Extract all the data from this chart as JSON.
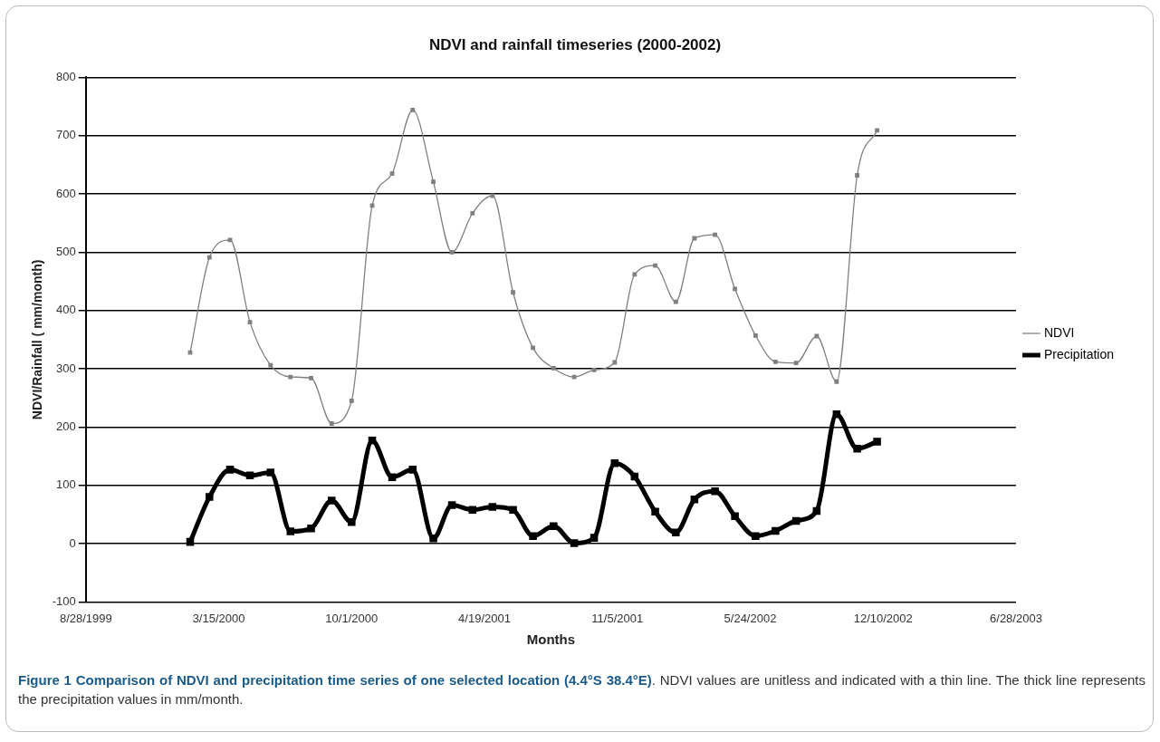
{
  "chart_data": {
    "type": "line",
    "title": "NDVI and rainfall timeseries (2000-2002)",
    "xlabel": "Months",
    "ylabel": "NDVI/Rainfall ( mm/month)",
    "x": [
      "2000-02-01",
      "2000-03-01",
      "2000-04-01",
      "2000-05-01",
      "2000-06-01",
      "2000-07-01",
      "2000-08-01",
      "2000-09-01",
      "2000-10-01",
      "2000-11-01",
      "2000-12-01",
      "2001-01-01",
      "2001-02-01",
      "2001-03-01",
      "2001-04-01",
      "2001-05-01",
      "2001-06-01",
      "2001-07-01",
      "2001-08-01",
      "2001-09-01",
      "2001-10-01",
      "2001-11-01",
      "2001-12-01",
      "2002-01-01",
      "2002-02-01",
      "2002-03-01",
      "2002-04-01",
      "2002-05-01",
      "2002-06-01",
      "2002-07-01",
      "2002-08-01",
      "2002-09-01",
      "2002-10-01",
      "2002-11-01",
      "2002-12-01"
    ],
    "series": [
      {
        "name": "NDVI",
        "color": "#808080",
        "values": [
          328,
          491,
          521,
          380,
          306,
          286,
          284,
          206,
          245,
          580,
          635,
          744,
          621,
          500,
          567,
          597,
          431,
          336,
          301,
          286,
          298,
          311,
          462,
          477,
          415,
          524,
          530,
          437,
          357,
          312,
          310,
          356,
          278,
          632,
          709
        ]
      },
      {
        "name": "Precipitation",
        "color": "#000000",
        "values": [
          3,
          80,
          127,
          117,
          122,
          21,
          26,
          74,
          37,
          177,
          114,
          127,
          9,
          66,
          58,
          63,
          58,
          13,
          30,
          1,
          10,
          138,
          115,
          55,
          19,
          76,
          90,
          47,
          13,
          22,
          39,
          56,
          222,
          163,
          175
        ]
      }
    ],
    "xlim": [
      "1999-08-28",
      "2003-06-28"
    ],
    "xticks": [
      {
        "value": "1999-08-28",
        "label": "8/28/1999"
      },
      {
        "value": "2000-03-15",
        "label": "3/15/2000"
      },
      {
        "value": "2000-10-01",
        "label": "10/1/2000"
      },
      {
        "value": "2001-04-19",
        "label": "4/19/2001"
      },
      {
        "value": "2001-11-05",
        "label": "11/5/2001"
      },
      {
        "value": "2002-05-24",
        "label": "5/24/2002"
      },
      {
        "value": "2002-12-10",
        "label": "12/10/2002"
      },
      {
        "value": "2003-06-28",
        "label": "6/28/2003"
      }
    ],
    "ylim": [
      -100,
      800
    ],
    "yticks": [
      -100,
      0,
      100,
      200,
      300,
      400,
      500,
      600,
      700,
      800
    ],
    "grid": "y",
    "legend": "right",
    "marker": "square",
    "line_style": "solid",
    "annotations": [
      "Figure 1 Comparison of NDVI and precipitation time series of one selected location (4.4°S 38.4°E)",
      ". NDVI values are unitless and indicated with a thin line. The thick line represents the precipitation values in mm/month."
    ]
  }
}
